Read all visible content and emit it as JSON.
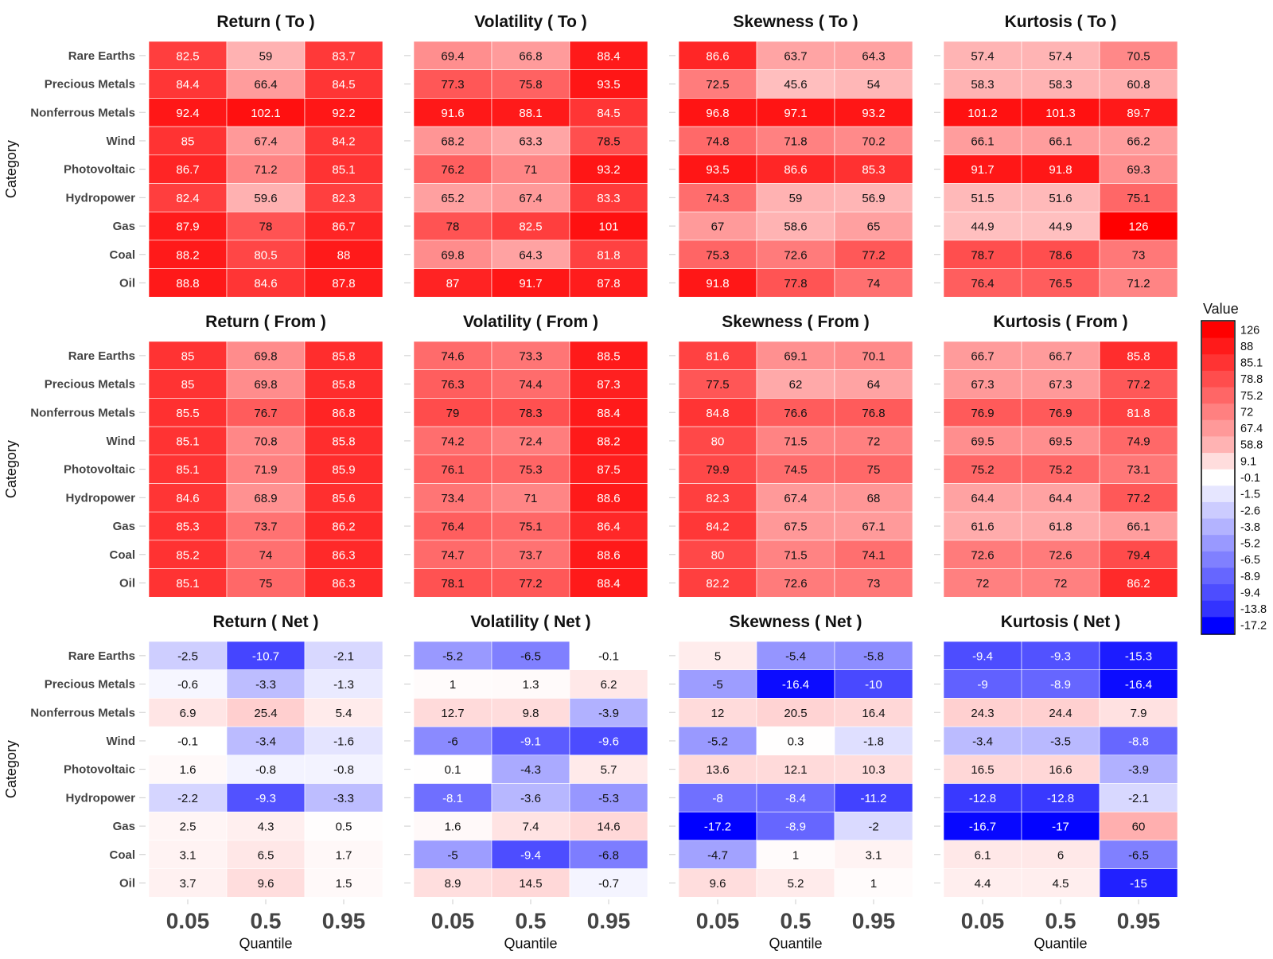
{
  "chart_data": {
    "type": "heatmap",
    "categories": [
      "Rare Earths",
      "Precious Metals",
      "Nonferrous Metals",
      "Wind",
      "Photovoltaic",
      "Hydropower",
      "Gas",
      "Coal",
      "Oil"
    ],
    "quantiles": [
      "0.05",
      "0.5",
      "0.95"
    ],
    "ylabel": "Category",
    "xlabel": "Quantile",
    "legend": {
      "title": "Value",
      "labels": [
        "126",
        "88",
        "85.1",
        "78.8",
        "75.2",
        "72",
        "67.4",
        "58.8",
        "9.1",
        "-0.1",
        "-1.5",
        "-2.6",
        "-3.8",
        "-5.2",
        "-6.5",
        "-8.9",
        "-9.4",
        "-13.8",
        "-17.2"
      ],
      "colors": [
        "#ff0000",
        "#ff1a1a",
        "#ff3333",
        "#ff4d4d",
        "#ff6666",
        "#ff8080",
        "#ff9999",
        "#ffb3b3",
        "#ffdddd",
        "#ffffff",
        "#e6e6ff",
        "#ccccff",
        "#b3b3ff",
        "#9999ff",
        "#8080ff",
        "#6666ff",
        "#4d4dff",
        "#3333ff",
        "#0000ff"
      ]
    },
    "panels": [
      {
        "title": "Return ( To )",
        "values": [
          [
            82.5,
            59,
            83.7
          ],
          [
            84.4,
            66.4,
            84.5
          ],
          [
            92.4,
            102.1,
            92.2
          ],
          [
            85,
            67.4,
            84.2
          ],
          [
            86.7,
            71.2,
            85.1
          ],
          [
            82.4,
            59.6,
            82.3
          ],
          [
            87.9,
            78,
            86.7
          ],
          [
            88.2,
            80.5,
            88
          ],
          [
            88.8,
            84.6,
            87.8
          ]
        ]
      },
      {
        "title": "Volatility ( To )",
        "values": [
          [
            69.4,
            66.8,
            88.4
          ],
          [
            77.3,
            75.8,
            93.5
          ],
          [
            91.6,
            88.1,
            84.5
          ],
          [
            68.2,
            63.3,
            78.5
          ],
          [
            76.2,
            71,
            93.2
          ],
          [
            65.2,
            67.4,
            83.3
          ],
          [
            78,
            82.5,
            101
          ],
          [
            69.8,
            64.3,
            81.8
          ],
          [
            87,
            91.7,
            87.8
          ]
        ]
      },
      {
        "title": "Skewness ( To )",
        "values": [
          [
            86.6,
            63.7,
            64.3
          ],
          [
            72.5,
            45.6,
            54
          ],
          [
            96.8,
            97.1,
            93.2
          ],
          [
            74.8,
            71.8,
            70.2
          ],
          [
            93.5,
            86.6,
            85.3
          ],
          [
            74.3,
            59,
            56.9
          ],
          [
            67,
            58.6,
            65
          ],
          [
            75.3,
            72.6,
            77.2
          ],
          [
            91.8,
            77.8,
            74
          ]
        ]
      },
      {
        "title": "Kurtosis ( To )",
        "values": [
          [
            57.4,
            57.4,
            70.5
          ],
          [
            58.3,
            58.3,
            60.8
          ],
          [
            101.2,
            101.3,
            89.7
          ],
          [
            66.1,
            66.1,
            66.2
          ],
          [
            91.7,
            91.8,
            69.3
          ],
          [
            51.5,
            51.6,
            75.1
          ],
          [
            44.9,
            44.9,
            126
          ],
          [
            78.7,
            78.6,
            73
          ],
          [
            76.4,
            76.5,
            71.2
          ]
        ]
      },
      {
        "title": "Return ( From )",
        "values": [
          [
            85,
            69.8,
            85.8
          ],
          [
            85,
            69.8,
            85.8
          ],
          [
            85.5,
            76.7,
            86.8
          ],
          [
            85.1,
            70.8,
            85.8
          ],
          [
            85.1,
            71.9,
            85.9
          ],
          [
            84.6,
            68.9,
            85.6
          ],
          [
            85.3,
            73.7,
            86.2
          ],
          [
            85.2,
            74,
            86.3
          ],
          [
            85.1,
            75,
            86.3
          ]
        ]
      },
      {
        "title": "Volatility ( From )",
        "values": [
          [
            74.6,
            73.3,
            88.5
          ],
          [
            76.3,
            74.4,
            87.3
          ],
          [
            79,
            78.3,
            88.4
          ],
          [
            74.2,
            72.4,
            88.2
          ],
          [
            76.1,
            75.3,
            87.5
          ],
          [
            73.4,
            71,
            88.6
          ],
          [
            76.4,
            75.1,
            86.4
          ],
          [
            74.7,
            73.7,
            88.6
          ],
          [
            78.1,
            77.2,
            88.4
          ]
        ]
      },
      {
        "title": "Skewness ( From )",
        "values": [
          [
            81.6,
            69.1,
            70.1
          ],
          [
            77.5,
            62,
            64
          ],
          [
            84.8,
            76.6,
            76.8
          ],
          [
            80,
            71.5,
            72
          ],
          [
            79.9,
            74.5,
            75
          ],
          [
            82.3,
            67.4,
            68
          ],
          [
            84.2,
            67.5,
            67.1
          ],
          [
            80,
            71.5,
            74.1
          ],
          [
            82.2,
            72.6,
            73
          ]
        ]
      },
      {
        "title": "Kurtosis ( From )",
        "values": [
          [
            66.7,
            66.7,
            85.8
          ],
          [
            67.3,
            67.3,
            77.2
          ],
          [
            76.9,
            76.9,
            81.8
          ],
          [
            69.5,
            69.5,
            74.9
          ],
          [
            75.2,
            75.2,
            73.1
          ],
          [
            64.4,
            64.4,
            77.2
          ],
          [
            61.6,
            61.8,
            66.1
          ],
          [
            72.6,
            72.6,
            79.4
          ],
          [
            72,
            72,
            86.2
          ]
        ]
      },
      {
        "title": "Return ( Net )",
        "values": [
          [
            -2.5,
            -10.7,
            -2.1
          ],
          [
            -0.6,
            -3.3,
            -1.3
          ],
          [
            6.9,
            25.4,
            5.4
          ],
          [
            -0.1,
            -3.4,
            -1.6
          ],
          [
            1.6,
            -0.8,
            -0.8
          ],
          [
            -2.2,
            -9.3,
            -3.3
          ],
          [
            2.5,
            4.3,
            0.5
          ],
          [
            3.1,
            6.5,
            1.7
          ],
          [
            3.7,
            9.6,
            1.5
          ]
        ]
      },
      {
        "title": "Volatility ( Net )",
        "values": [
          [
            -5.2,
            -6.5,
            -0.1
          ],
          [
            1,
            1.3,
            6.2
          ],
          [
            12.7,
            9.8,
            -3.9
          ],
          [
            -6,
            -9.1,
            -9.6
          ],
          [
            0.1,
            -4.3,
            5.7
          ],
          [
            -8.1,
            -3.6,
            -5.3
          ],
          [
            1.6,
            7.4,
            14.6
          ],
          [
            -5,
            -9.4,
            -6.8
          ],
          [
            8.9,
            14.5,
            -0.7
          ]
        ]
      },
      {
        "title": "Skewness ( Net )",
        "values": [
          [
            5,
            -5.4,
            -5.8
          ],
          [
            -5,
            -16.4,
            -10
          ],
          [
            12,
            20.5,
            16.4
          ],
          [
            -5.2,
            0.3,
            -1.8
          ],
          [
            13.6,
            12.1,
            10.3
          ],
          [
            -8,
            -8.4,
            -11.2
          ],
          [
            -17.2,
            -8.9,
            -2
          ],
          [
            -4.7,
            1,
            3.1
          ],
          [
            9.6,
            5.2,
            1
          ]
        ]
      },
      {
        "title": "Kurtosis ( Net )",
        "values": [
          [
            -9.4,
            -9.3,
            -15.3
          ],
          [
            -9,
            -8.9,
            -16.4
          ],
          [
            24.3,
            24.4,
            7.9
          ],
          [
            -3.4,
            -3.5,
            -8.8
          ],
          [
            16.5,
            16.6,
            -3.9
          ],
          [
            -12.8,
            -12.8,
            -2.1
          ],
          [
            -16.7,
            -17,
            60
          ],
          [
            6.1,
            6,
            -6.5
          ],
          [
            4.4,
            4.5,
            -15
          ]
        ]
      }
    ]
  }
}
